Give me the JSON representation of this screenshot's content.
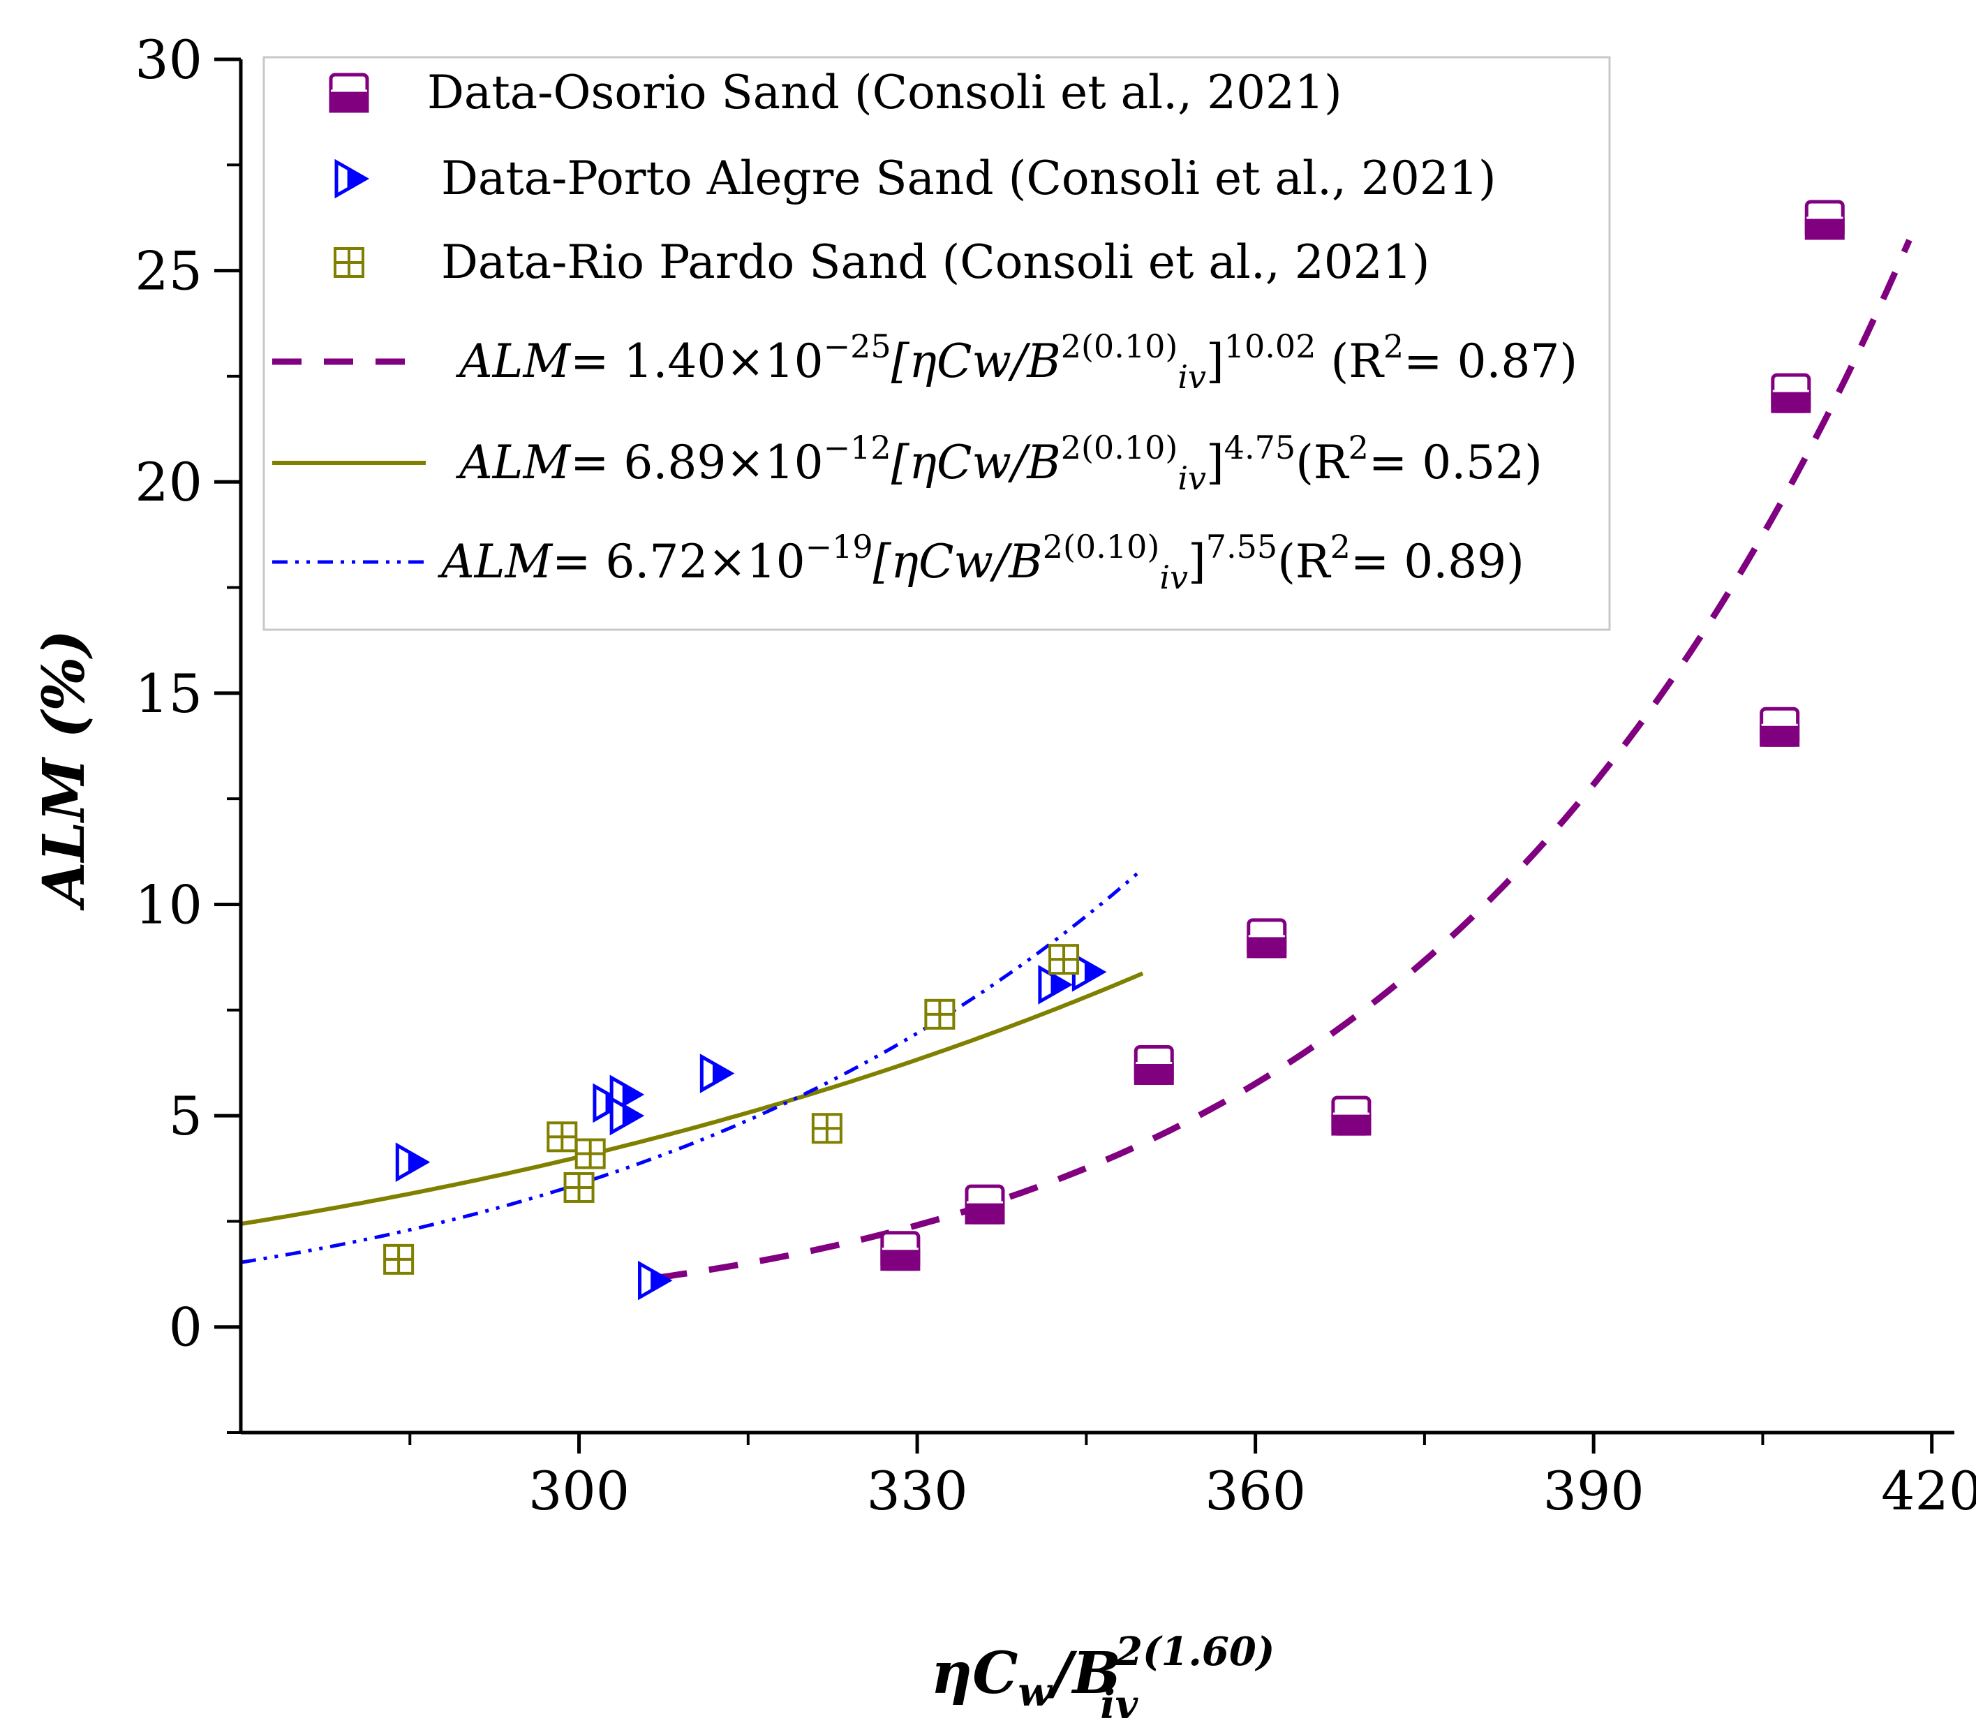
{
  "chart_data": {
    "type": "scatter",
    "title": "",
    "xlabel": "ηCw/Biv2(1.60)",
    "ylabel": "ALM (%)",
    "xlim": [
      270,
      422
    ],
    "ylim": [
      -2.5,
      30
    ],
    "x_ticks": [
      300,
      330,
      360,
      390,
      420
    ],
    "y_ticks": [
      0,
      5,
      10,
      15,
      20,
      25,
      30
    ],
    "grid": false,
    "legend_position": "top-left",
    "colors": {
      "osorio": "#800080",
      "porto": "#0000ff",
      "rio": "#808000"
    },
    "series": [
      {
        "name": "Data-Osorio Sand (Consoli et al., 2021)",
        "marker": "half-filled-square",
        "color": "#800080",
        "points": [
          [
            328.5,
            1.8
          ],
          [
            336.0,
            2.9
          ],
          [
            351.0,
            6.2
          ],
          [
            361.0,
            9.2
          ],
          [
            368.5,
            5.0
          ],
          [
            406.5,
            14.2
          ],
          [
            407.5,
            22.1
          ],
          [
            410.5,
            26.2
          ]
        ]
      },
      {
        "name": "Data-Porto Alegre Sand (Consoli et al., 2021)",
        "marker": "half-filled-triangle-right",
        "color": "#0000ff",
        "points": [
          [
            285.0,
            3.9
          ],
          [
            302.5,
            5.3
          ],
          [
            304.0,
            5.5
          ],
          [
            304.0,
            5.0
          ],
          [
            306.5,
            1.1
          ],
          [
            312.0,
            6.0
          ],
          [
            342.0,
            8.1
          ],
          [
            345.0,
            8.4
          ]
        ]
      },
      {
        "name": "Data-Rio Pardo Sand (Consoli et al., 2021)",
        "marker": "crossed-square",
        "color": "#808000",
        "points": [
          [
            284.0,
            1.6
          ],
          [
            298.5,
            4.5
          ],
          [
            300.0,
            3.3
          ],
          [
            301.0,
            4.1
          ],
          [
            322.0,
            4.7
          ],
          [
            332.0,
            7.4
          ],
          [
            343.0,
            8.7
          ]
        ]
      }
    ],
    "fits": [
      {
        "legend": {
          "lhs": "ALM",
          "coef": "= 1.40×10",
          "coef_exp": "−25",
          "expr_base": "[ηCw/B",
          "expr_sup": "2(0.10)",
          "expr_sub": "iv",
          "close": "]",
          "power": "10.02",
          "r2_open": " (R",
          "r2_sup": "2",
          "r2_close": "= 0.87)"
        },
        "a": 1.4e-25,
        "b": 10.02,
        "x_range": [
          307,
          418
        ],
        "style": "dash",
        "color": "#800080"
      },
      {
        "legend": {
          "lhs": "ALM",
          "coef": "= 6.89×10",
          "coef_exp": "−12",
          "expr_base": "[ηCw/B",
          "expr_sup": "2(0.10)",
          "expr_sub": "iv",
          "close": "]",
          "power": "4.75",
          "r2_open": "(R",
          "r2_sup": "2",
          "r2_close": "= 0.52)"
        },
        "a": 6.89e-12,
        "b": 4.75,
        "x_range": [
          270,
          350
        ],
        "style": "solid",
        "color": "#808000"
      },
      {
        "legend": {
          "lhs": "ALM",
          "coef": "= 6.72×10",
          "coef_exp": "−19",
          "expr_base": "[ηCw/B",
          "expr_sup": "2(0.10)",
          "expr_sub": "iv",
          "close": "]",
          "power": "7.55",
          "r2_open": "(R",
          "r2_sup": "2",
          "r2_close": "= 0.89)"
        },
        "a": 6.72e-19,
        "b": 7.55,
        "x_range": [
          270,
          350
        ],
        "style": "dash-dot-dot",
        "color": "#0000ff"
      }
    ]
  }
}
